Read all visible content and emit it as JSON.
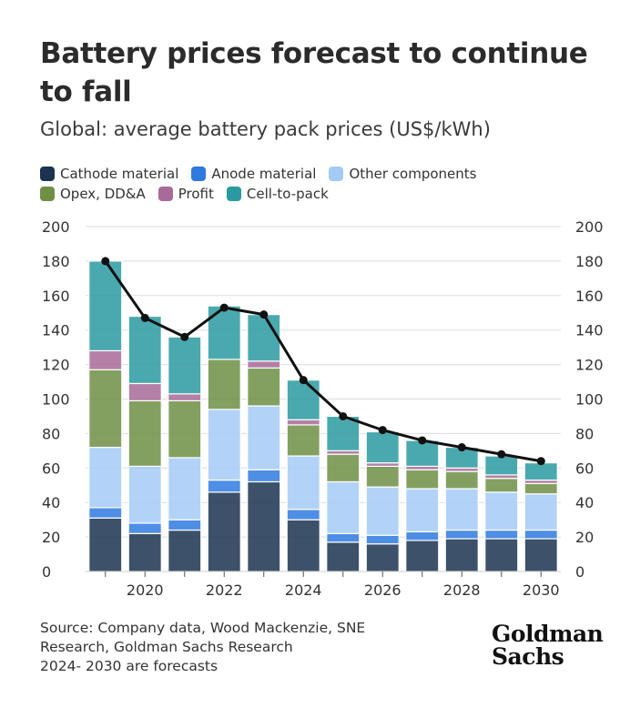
{
  "header": {
    "title": "Battery prices forecast to continue to fall",
    "subtitle": "Global: average battery pack prices (US$/kWh)"
  },
  "footer": {
    "source_lines": [
      "Source: Company data, Wood Mackenzie, SNE",
      "Research, Goldman Sachs Research",
      "2024- 2030 are forecasts"
    ],
    "logo_lines": [
      "Goldman",
      "Sachs"
    ]
  },
  "chart_data": {
    "type": "bar",
    "stacked": true,
    "title": "Battery prices forecast to continue to fall",
    "subtitle": "Global: average battery pack prices (US$/kWh)",
    "ylim": [
      0,
      200
    ],
    "yticks": [
      0,
      20,
      40,
      60,
      80,
      100,
      120,
      140,
      160,
      180,
      200
    ],
    "secondary_y": true,
    "x": [
      2019,
      2020,
      2021,
      2022,
      2023,
      2024,
      2025,
      2026,
      2027,
      2028,
      2029,
      2030
    ],
    "xtick_labels": [
      "2020",
      "2022",
      "2024",
      "2026",
      "2028",
      "2030"
    ],
    "xtick_values": [
      2020,
      2022,
      2024,
      2026,
      2028,
      2030
    ],
    "legend": [
      [
        "Cathode material",
        "Anode material",
        "Other components"
      ],
      [
        "Opex, DD&A",
        "Profit",
        "Cell-to-pack"
      ]
    ],
    "series": [
      {
        "name": "Cathode material",
        "color": "#1b3350",
        "values": [
          31,
          22,
          24,
          46,
          52,
          30,
          17,
          16,
          18,
          19,
          19,
          19
        ]
      },
      {
        "name": "Anode material",
        "color": "#2f7ae0",
        "values": [
          6,
          6,
          6,
          7,
          7,
          6,
          5,
          5,
          5,
          5,
          5,
          5
        ]
      },
      {
        "name": "Other components",
        "color": "#a4cbf6",
        "values": [
          35,
          33,
          36,
          41,
          37,
          31,
          30,
          28,
          25,
          24,
          22,
          21
        ]
      },
      {
        "name": "Opex, DD&A",
        "color": "#6f8f45",
        "values": [
          45,
          38,
          33,
          29,
          22,
          18,
          16,
          12,
          11,
          10,
          8,
          6
        ]
      },
      {
        "name": "Profit",
        "color": "#a86a98",
        "values": [
          11,
          10,
          4,
          0,
          4,
          3,
          2,
          2,
          2,
          2,
          2,
          2
        ]
      },
      {
        "name": "Cell-to-pack",
        "color": "#2a9aa0",
        "values": [
          52,
          39,
          33,
          31,
          27,
          23,
          20,
          18,
          15,
          12,
          11,
          10
        ]
      }
    ],
    "line": {
      "name": "Total",
      "color": "#111111",
      "values": [
        180,
        147,
        136,
        153,
        149,
        111,
        90,
        82,
        76,
        72,
        68,
        64
      ]
    }
  }
}
